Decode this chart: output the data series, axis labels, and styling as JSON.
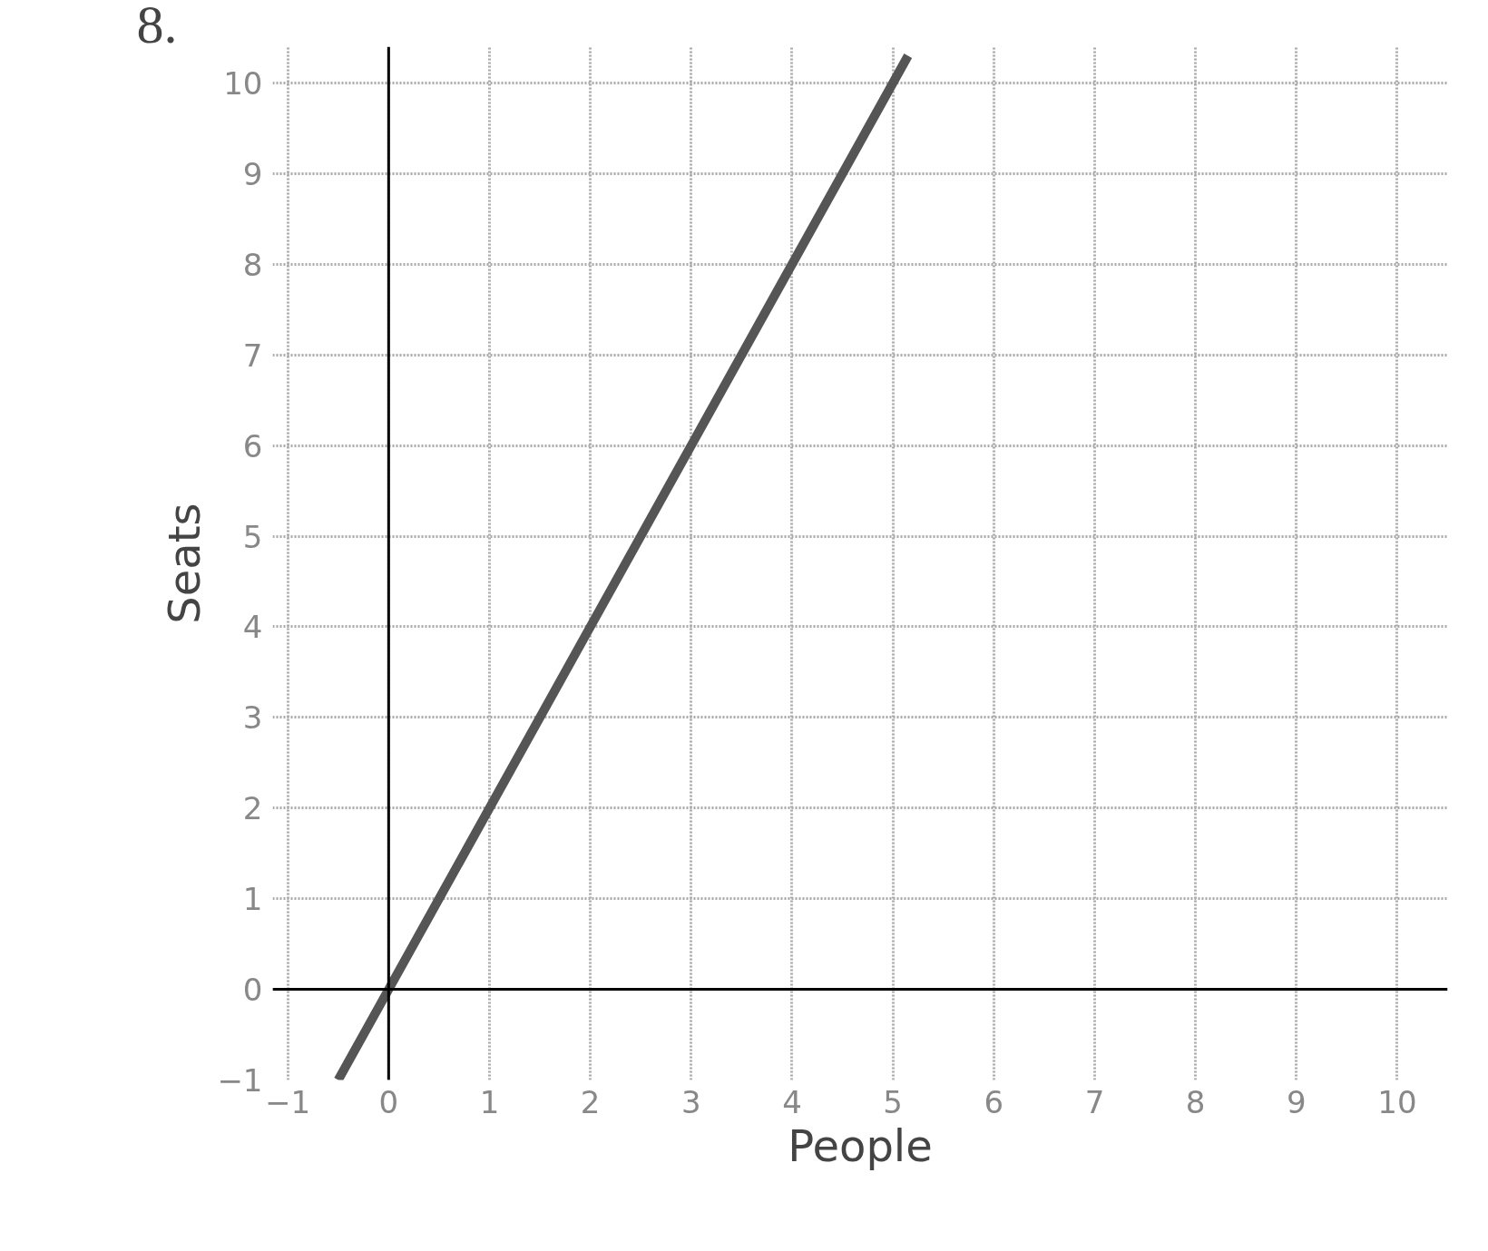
{
  "chart_data": {
    "type": "line",
    "title": "8.",
    "xlabel": "People",
    "ylabel": "Seats",
    "series": [
      {
        "color": "#555555",
        "x": [
          -0.5,
          0,
          1,
          2,
          3,
          4,
          5,
          5.15
        ],
        "values": [
          -1,
          0,
          2,
          4,
          6,
          8,
          10,
          10.3
        ]
      }
    ],
    "xlim": [
      -1.15,
      10.5
    ],
    "ylim": [
      -1,
      10.4
    ],
    "xticks": [
      -1,
      0,
      1,
      2,
      3,
      4,
      5,
      6,
      7,
      8,
      9,
      10
    ],
    "yticks": [
      -1,
      0,
      1,
      2,
      3,
      4,
      5,
      6,
      7,
      8,
      9,
      10
    ],
    "grid": true,
    "marker": "none",
    "line_style": "solid"
  }
}
